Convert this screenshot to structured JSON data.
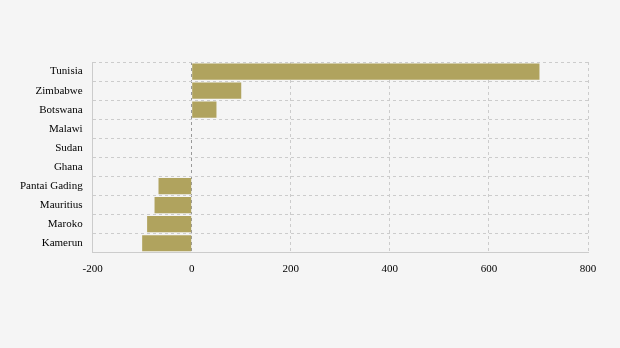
{
  "chart_data": {
    "type": "bar",
    "orientation": "horizontal",
    "categories": [
      "Tunisia",
      "Zimbabwe",
      "Botswana",
      "Malawi",
      "Sudan",
      "Ghana",
      "Pantai Gading",
      "Mauritius",
      "Maroko",
      "Kamerun"
    ],
    "values": [
      702,
      100,
      50,
      0,
      0,
      0,
      -67,
      -75,
      -90,
      -100
    ],
    "color": "#b0a35e",
    "xlim": [
      -200,
      800
    ],
    "xticks": [
      -200,
      0,
      200,
      400,
      600,
      800
    ],
    "grid": true
  }
}
